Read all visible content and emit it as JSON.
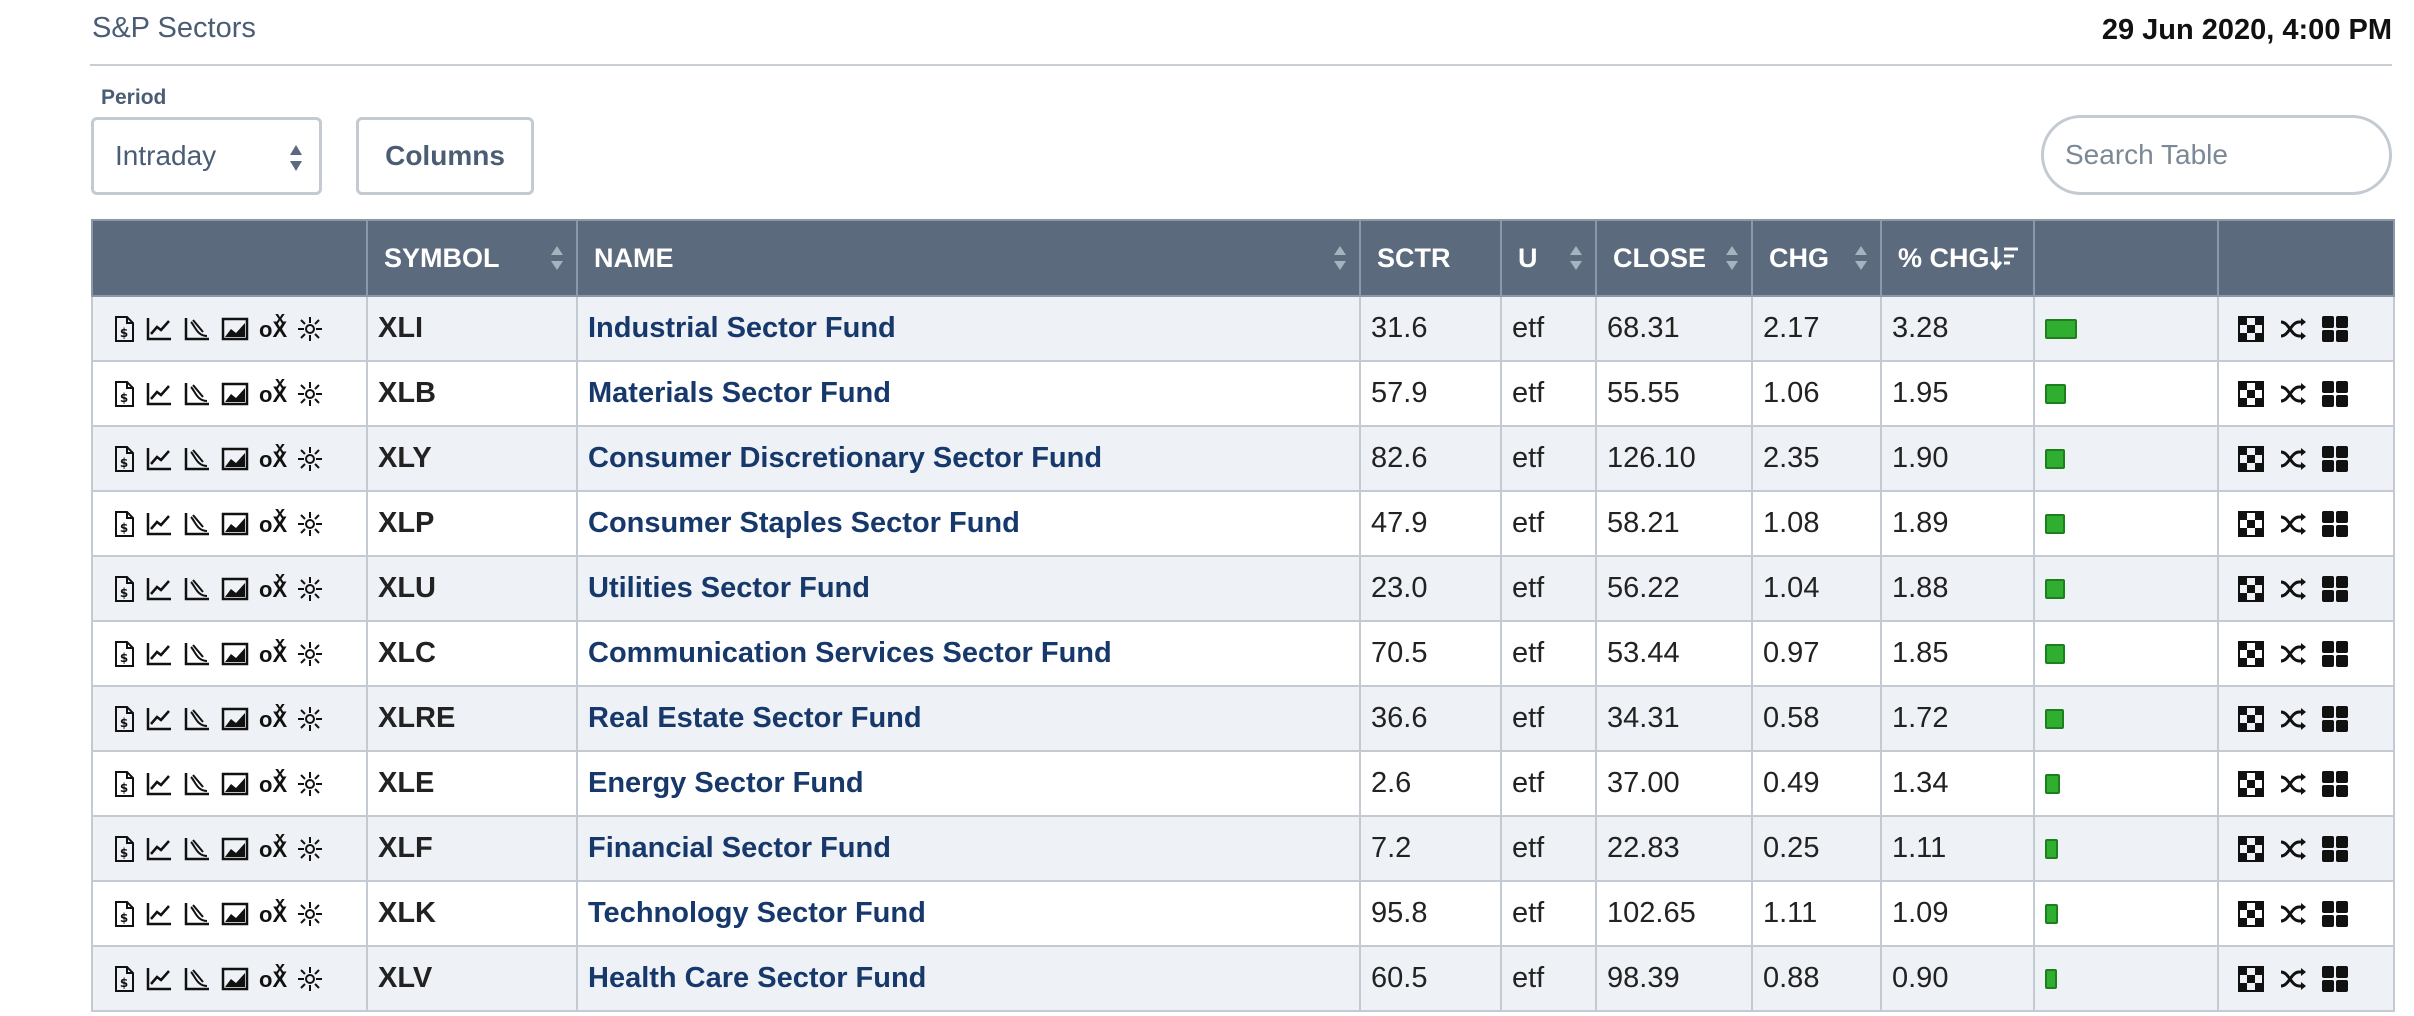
{
  "header": {
    "title": "S&P Sectors",
    "datetime": "29 Jun 2020, 4:00 PM"
  },
  "controls": {
    "period_label": "Period",
    "period_value": "Intraday",
    "columns_label": "Columns",
    "search_placeholder": "Search Table"
  },
  "table": {
    "headers": [
      "SYMBOL",
      "NAME",
      "SCTR",
      "U",
      "CLOSE",
      "CHG",
      "% CHG"
    ],
    "sorted_column": "% CHG",
    "sort_direction": "descending",
    "bar_color": "#2fae2f",
    "rows": [
      {
        "symbol": "XLI",
        "name": "Industrial Sector Fund",
        "sctr": "31.6",
        "u": "etf",
        "close": "68.31",
        "chg": "2.17",
        "pct": "3.28"
      },
      {
        "symbol": "XLB",
        "name": "Materials Sector Fund",
        "sctr": "57.9",
        "u": "etf",
        "close": "55.55",
        "chg": "1.06",
        "pct": "1.95"
      },
      {
        "symbol": "XLY",
        "name": "Consumer Discretionary Sector Fund",
        "sctr": "82.6",
        "u": "etf",
        "close": "126.10",
        "chg": "2.35",
        "pct": "1.90"
      },
      {
        "symbol": "XLP",
        "name": "Consumer Staples Sector Fund",
        "sctr": "47.9",
        "u": "etf",
        "close": "58.21",
        "chg": "1.08",
        "pct": "1.89"
      },
      {
        "symbol": "XLU",
        "name": "Utilities Sector Fund",
        "sctr": "23.0",
        "u": "etf",
        "close": "56.22",
        "chg": "1.04",
        "pct": "1.88"
      },
      {
        "symbol": "XLC",
        "name": "Communication Services Sector Fund",
        "sctr": "70.5",
        "u": "etf",
        "close": "53.44",
        "chg": "0.97",
        "pct": "1.85"
      },
      {
        "symbol": "XLRE",
        "name": "Real Estate Sector Fund",
        "sctr": "36.6",
        "u": "etf",
        "close": "34.31",
        "chg": "0.58",
        "pct": "1.72"
      },
      {
        "symbol": "XLE",
        "name": "Energy Sector Fund",
        "sctr": "2.6",
        "u": "etf",
        "close": "37.00",
        "chg": "0.49",
        "pct": "1.34"
      },
      {
        "symbol": "XLF",
        "name": "Financial Sector Fund",
        "sctr": "7.2",
        "u": "etf",
        "close": "22.83",
        "chg": "0.25",
        "pct": "1.11"
      },
      {
        "symbol": "XLK",
        "name": "Technology Sector Fund",
        "sctr": "95.8",
        "u": "etf",
        "close": "102.65",
        "chg": "1.11",
        "pct": "1.09"
      },
      {
        "symbol": "XLV",
        "name": "Health Care Sector Fund",
        "sctr": "60.5",
        "u": "etf",
        "close": "98.39",
        "chg": "0.88",
        "pct": "0.90"
      }
    ],
    "row_icons": [
      "dollar-document-icon",
      "line-chart-icon",
      "candlestick-chart-icon",
      "area-chart-icon",
      "point-and-figure-icon",
      "seasonality-icon"
    ],
    "action_icons": [
      "checkered-chart-icon",
      "shuffle-icon",
      "grid-icon"
    ]
  }
}
